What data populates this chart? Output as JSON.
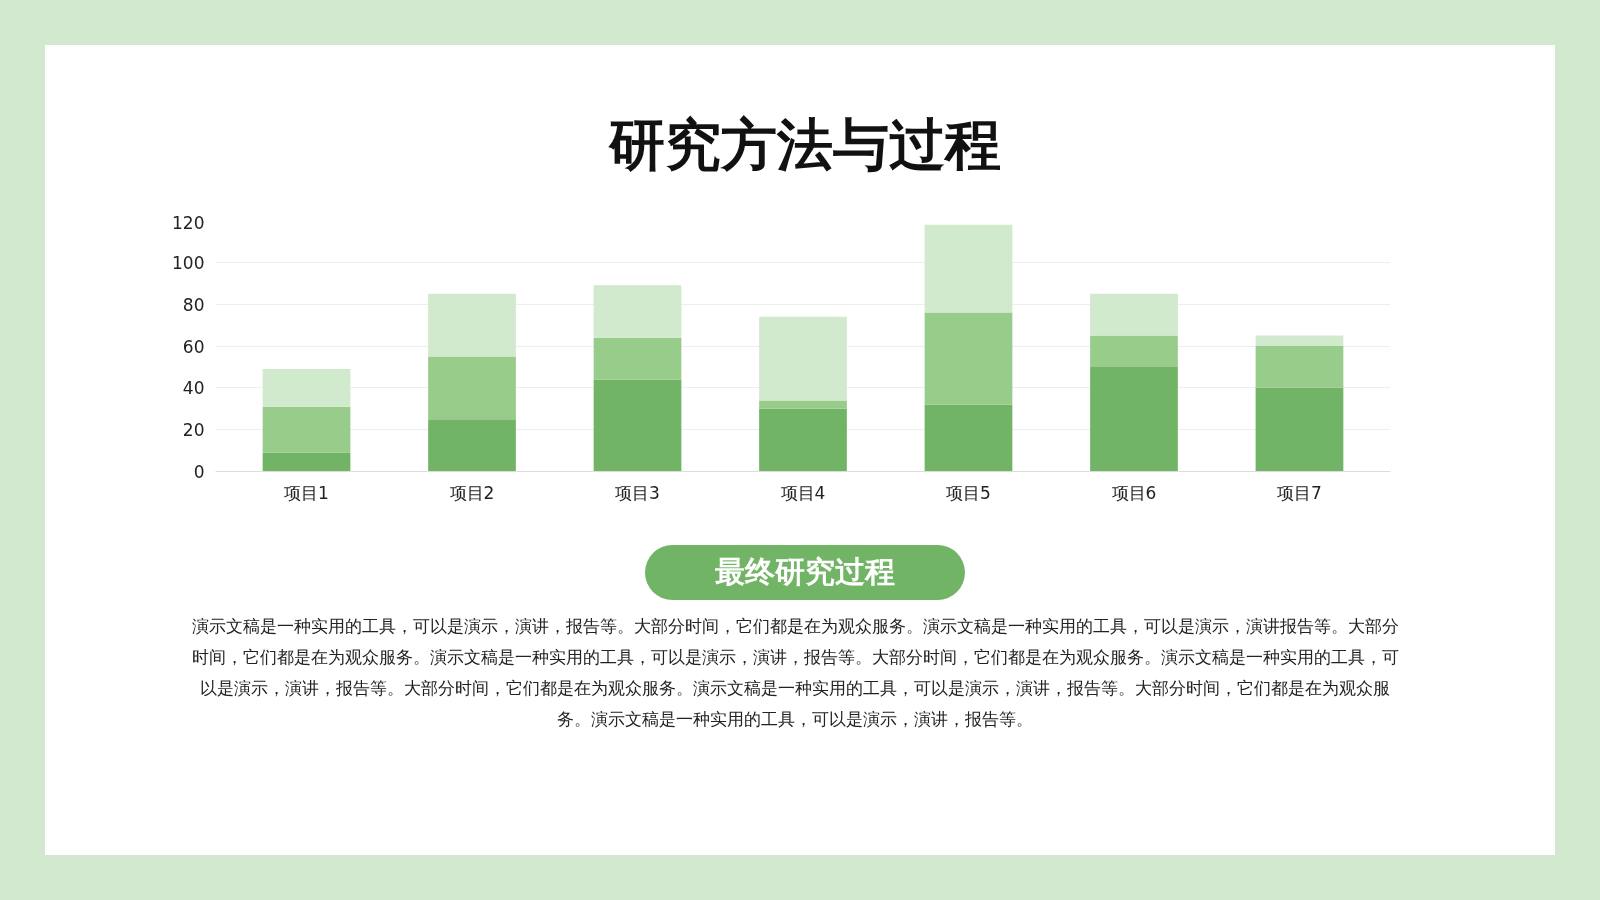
{
  "chart_data": {
    "type": "bar",
    "title": "研究方法与过程",
    "stacked": true,
    "categories": [
      "项目1",
      "项目2",
      "项目3",
      "项目4",
      "项目5",
      "项目6",
      "项目7"
    ],
    "series": [
      {
        "color": "#72b466",
        "values": [
          9,
          25,
          44,
          30,
          32,
          50,
          40
        ]
      },
      {
        "color": "#98cc8a",
        "values": [
          22,
          30,
          20,
          4,
          44,
          15,
          20
        ]
      },
      {
        "color": "#d1e9cc",
        "values": [
          18,
          30,
          25,
          40,
          42,
          20,
          5
        ]
      }
    ],
    "ylim": [
      0,
      120
    ],
    "yticks": [
      0,
      20,
      40,
      60,
      80,
      100,
      120
    ],
    "grid": "y",
    "annotations": [
      "最终研究过程",
      "演示文稿是一种实用的工具，可以是演示，演讲，报告等。大部分时间，它们都是在为观众服务。演示文稿是一种实用的工具，可以是演示，演讲报告等。大部分时间，它们都是在为观众服务。演示文稿是一种实用的工具，可以是演示，演讲，报告等。大部分时间，它们都是在为观众服务。演示文稿是一种实用的工具，可以是演示，演讲，报告等。大部分时间，它们都是在为观众服务。演示文稿是一种实用的工具，可以是演示，演讲，报告等。大部分时间，它们都是在为观众服务。演示文稿是一种实用的工具，可以是演示，演讲，报告等。"
    ]
  }
}
